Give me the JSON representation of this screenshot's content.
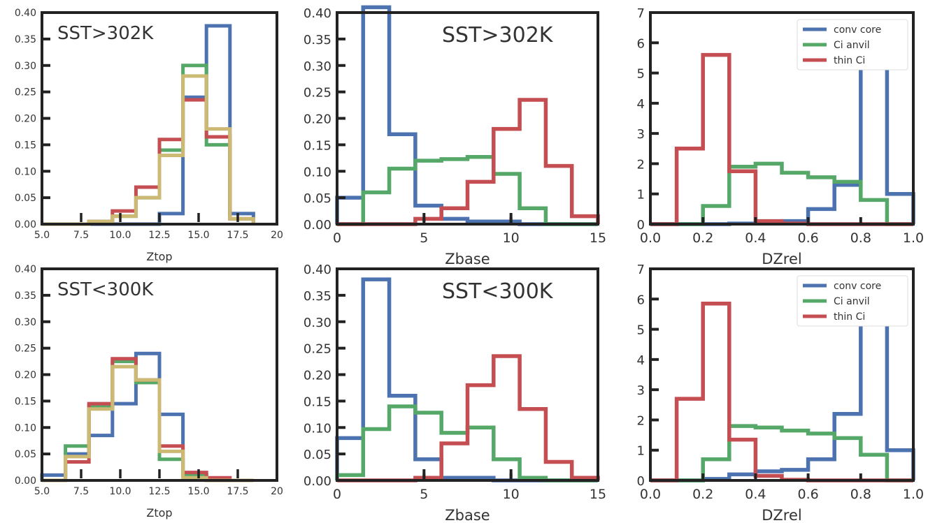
{
  "chart_data": [
    {
      "type": "step-histogram",
      "panel": "top-left",
      "annotation": "SST>302K",
      "xlabel": "Ztop",
      "xlim": [
        5,
        20
      ],
      "ylim": [
        0,
        0.4
      ],
      "xticks": [
        "5.0",
        "7.5",
        "10.0",
        "12.5",
        "15.0",
        "17.5",
        "20"
      ],
      "yticks": [
        "0.00",
        "0.05",
        "0.10",
        "0.15",
        "0.20",
        "0.25",
        "0.30",
        "0.35",
        "0.40"
      ],
      "bin_edges": [
        5.0,
        6.5,
        8.0,
        9.5,
        11.0,
        12.5,
        14.0,
        15.5,
        17.0,
        18.5
      ],
      "series": [
        {
          "color": "#4c72b0",
          "values": [
            0.0,
            0.0,
            0.0,
            0.0,
            0.0,
            0.02,
            0.24,
            0.375,
            0.02
          ]
        },
        {
          "color": "#55a868",
          "values": [
            0.0,
            0.0,
            0.005,
            0.015,
            0.05,
            0.14,
            0.3,
            0.15,
            0.01
          ]
        },
        {
          "color": "#c44e52",
          "values": [
            0.0,
            0.0,
            0.005,
            0.025,
            0.07,
            0.16,
            0.235,
            0.165,
            0.01
          ]
        },
        {
          "color": "#ccb974",
          "values": [
            0.0,
            0.0,
            0.005,
            0.015,
            0.05,
            0.13,
            0.28,
            0.18,
            0.01
          ]
        }
      ]
    },
    {
      "type": "step-histogram",
      "panel": "top-middle",
      "annotation": "SST>302K",
      "xlabel": "Zbase",
      "xlim": [
        0,
        15
      ],
      "ylim": [
        0,
        0.4
      ],
      "xticks": [
        "0",
        "5",
        "10",
        "15"
      ],
      "yticks": [
        "0.00",
        "0.05",
        "0.10",
        "0.15",
        "0.20",
        "0.25",
        "0.30",
        "0.35",
        "0.40"
      ],
      "bin_edges": [
        0,
        1.5,
        3.0,
        4.5,
        6.0,
        7.5,
        9.0,
        10.5,
        12.0,
        13.5,
        15.0
      ],
      "series": [
        {
          "color": "#4c72b0",
          "values": [
            0.05,
            0.41,
            0.17,
            0.035,
            0.01,
            0.005,
            0.005,
            0.0,
            0.0,
            0.0
          ]
        },
        {
          "color": "#55a868",
          "values": [
            0.0,
            0.06,
            0.105,
            0.12,
            0.123,
            0.127,
            0.095,
            0.03,
            0.0,
            0.0
          ]
        },
        {
          "color": "#c44e52",
          "values": [
            0.0,
            0.0,
            0.0,
            0.01,
            0.03,
            0.08,
            0.18,
            0.235,
            0.11,
            0.015
          ]
        }
      ],
      "gray_ticks_x": [
        5,
        10
      ]
    },
    {
      "type": "step-histogram",
      "panel": "top-right",
      "xlabel": "DZrel",
      "xlim": [
        0,
        1
      ],
      "ylim": [
        0,
        7
      ],
      "xticks": [
        "0.0",
        "0.2",
        "0.4",
        "0.6",
        "0.8",
        "1.0"
      ],
      "yticks": [
        "0",
        "1",
        "2",
        "3",
        "4",
        "5",
        "6",
        "7"
      ],
      "legend": [
        "conv core",
        "Ci anvil",
        "thin Ci"
      ],
      "bin_edges": [
        0.0,
        0.1,
        0.2,
        0.3,
        0.4,
        0.5,
        0.6,
        0.7,
        0.8,
        0.9,
        1.0
      ],
      "series": [
        {
          "name": "conv core",
          "color": "#4c72b0",
          "values": [
            0.0,
            0.0,
            0.0,
            0.02,
            0.05,
            0.1,
            0.5,
            1.3,
            6.1,
            1.0
          ]
        },
        {
          "name": "Ci anvil",
          "color": "#55a868",
          "values": [
            0.0,
            0.0,
            0.6,
            1.9,
            2.0,
            1.7,
            1.55,
            1.4,
            0.8,
            0.0
          ]
        },
        {
          "name": "thin Ci",
          "color": "#c44e52",
          "values": [
            0.0,
            2.5,
            5.6,
            1.75,
            0.1,
            0.02,
            0.0,
            0.0,
            0.0,
            0.0
          ]
        }
      ]
    },
    {
      "type": "step-histogram",
      "panel": "bottom-left",
      "annotation": "SST<300K",
      "xlabel": "Ztop",
      "xlim": [
        5,
        20
      ],
      "ylim": [
        0,
        0.4
      ],
      "xticks": [
        "5.0",
        "7.5",
        "10.0",
        "12.5",
        "15.0",
        "17.5",
        "20"
      ],
      "yticks": [
        "0.00",
        "0.05",
        "0.10",
        "0.15",
        "0.20",
        "0.25",
        "0.30",
        "0.35",
        "0.40"
      ],
      "bin_edges": [
        5.0,
        6.5,
        8.0,
        9.5,
        11.0,
        12.5,
        14.0,
        15.5,
        17.0,
        18.5
      ],
      "series": [
        {
          "color": "#4c72b0",
          "values": [
            0.01,
            0.05,
            0.085,
            0.145,
            0.24,
            0.125,
            0.01,
            0.0,
            0.0
          ]
        },
        {
          "color": "#55a868",
          "values": [
            0.0,
            0.065,
            0.14,
            0.225,
            0.185,
            0.04,
            0.01,
            0.0,
            0.0
          ]
        },
        {
          "color": "#c44e52",
          "values": [
            0.0,
            0.035,
            0.145,
            0.23,
            0.19,
            0.065,
            0.015,
            0.005,
            0.0
          ]
        },
        {
          "color": "#ccb974",
          "values": [
            0.0,
            0.045,
            0.135,
            0.215,
            0.19,
            0.055,
            0.005,
            0.0,
            0.0
          ]
        }
      ]
    },
    {
      "type": "step-histogram",
      "panel": "bottom-middle",
      "annotation": "SST<300K",
      "xlabel": "Zbase",
      "xlim": [
        0,
        15
      ],
      "ylim": [
        0,
        0.4
      ],
      "xticks": [
        "0",
        "5",
        "10",
        "15"
      ],
      "yticks": [
        "0.00",
        "0.05",
        "0.10",
        "0.15",
        "0.20",
        "0.25",
        "0.30",
        "0.35",
        "0.40"
      ],
      "bin_edges": [
        0,
        1.5,
        3.0,
        4.5,
        6.0,
        7.5,
        9.0,
        10.5,
        12.0,
        13.5,
        15.0
      ],
      "series": [
        {
          "color": "#4c72b0",
          "values": [
            0.08,
            0.38,
            0.16,
            0.04,
            0.005,
            0.005,
            0.0,
            0.0,
            0.0,
            0.0
          ]
        },
        {
          "color": "#55a868",
          "values": [
            0.01,
            0.097,
            0.14,
            0.128,
            0.09,
            0.1,
            0.04,
            0.005,
            0.0,
            0.0
          ]
        },
        {
          "color": "#c44e52",
          "values": [
            0.0,
            0.0,
            0.0,
            0.005,
            0.07,
            0.18,
            0.235,
            0.135,
            0.035,
            0.005
          ]
        }
      ],
      "gray_ticks_x": [
        5,
        10
      ]
    },
    {
      "type": "step-histogram",
      "panel": "bottom-right",
      "xlabel": "DZrel",
      "xlim": [
        0,
        1
      ],
      "ylim": [
        0,
        7
      ],
      "xticks": [
        "0.0",
        "0.2",
        "0.4",
        "0.6",
        "0.8",
        "1.0"
      ],
      "yticks": [
        "0",
        "1",
        "2",
        "3",
        "4",
        "5",
        "6",
        "7"
      ],
      "legend": [
        "conv core",
        "Ci anvil",
        "thin Ci"
      ],
      "bin_edges": [
        0.0,
        0.1,
        0.2,
        0.3,
        0.4,
        0.5,
        0.6,
        0.7,
        0.8,
        0.9,
        1.0
      ],
      "series": [
        {
          "name": "conv core",
          "color": "#4c72b0",
          "values": [
            0.0,
            0.0,
            0.05,
            0.2,
            0.3,
            0.35,
            0.7,
            2.2,
            5.2,
            1.0
          ]
        },
        {
          "name": "Ci anvil",
          "color": "#55a868",
          "values": [
            0.0,
            0.0,
            0.7,
            1.8,
            1.75,
            1.65,
            1.55,
            1.4,
            0.85,
            0.0
          ]
        },
        {
          "name": "thin Ci",
          "color": "#c44e52",
          "values": [
            0.0,
            2.7,
            5.85,
            1.35,
            0.15,
            0.02,
            0.0,
            0.0,
            0.0,
            0.0
          ]
        }
      ]
    }
  ]
}
